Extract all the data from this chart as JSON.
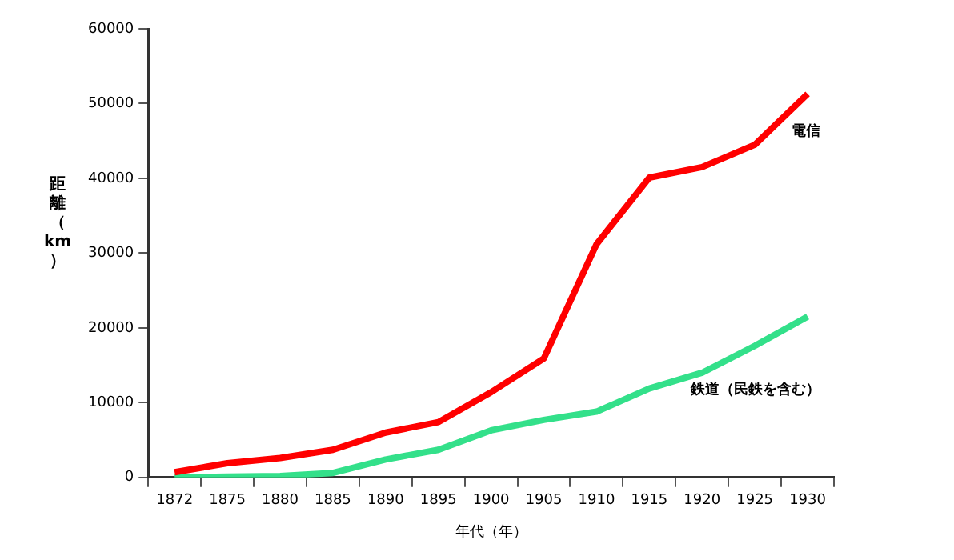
{
  "chart_data": {
    "type": "line",
    "xlabel": "年代（年）",
    "ylabel": "距離（km）",
    "categories": [
      "1872",
      "1875",
      "1880",
      "1885",
      "1890",
      "1895",
      "1900",
      "1905",
      "1910",
      "1915",
      "1920",
      "1925",
      "1930"
    ],
    "series": [
      {
        "name": "電信",
        "color": "#ff0000",
        "values": [
          700,
          1900,
          2600,
          3700,
          6000,
          7400,
          11400,
          15900,
          31200,
          40100,
          41500,
          44500,
          51300
        ]
      },
      {
        "name": "鉄道（民鉄を含む）",
        "color": "#33e08a",
        "values": [
          0,
          100,
          200,
          600,
          2400,
          3700,
          6300,
          7700,
          8800,
          11900,
          14000,
          17600,
          21500
        ]
      }
    ],
    "ylim": [
      0,
      60000
    ],
    "yticks": [
      0,
      10000,
      20000,
      30000,
      40000,
      50000,
      60000
    ],
    "grid": false,
    "legend": false,
    "marker": "none",
    "line_style": "solid"
  }
}
